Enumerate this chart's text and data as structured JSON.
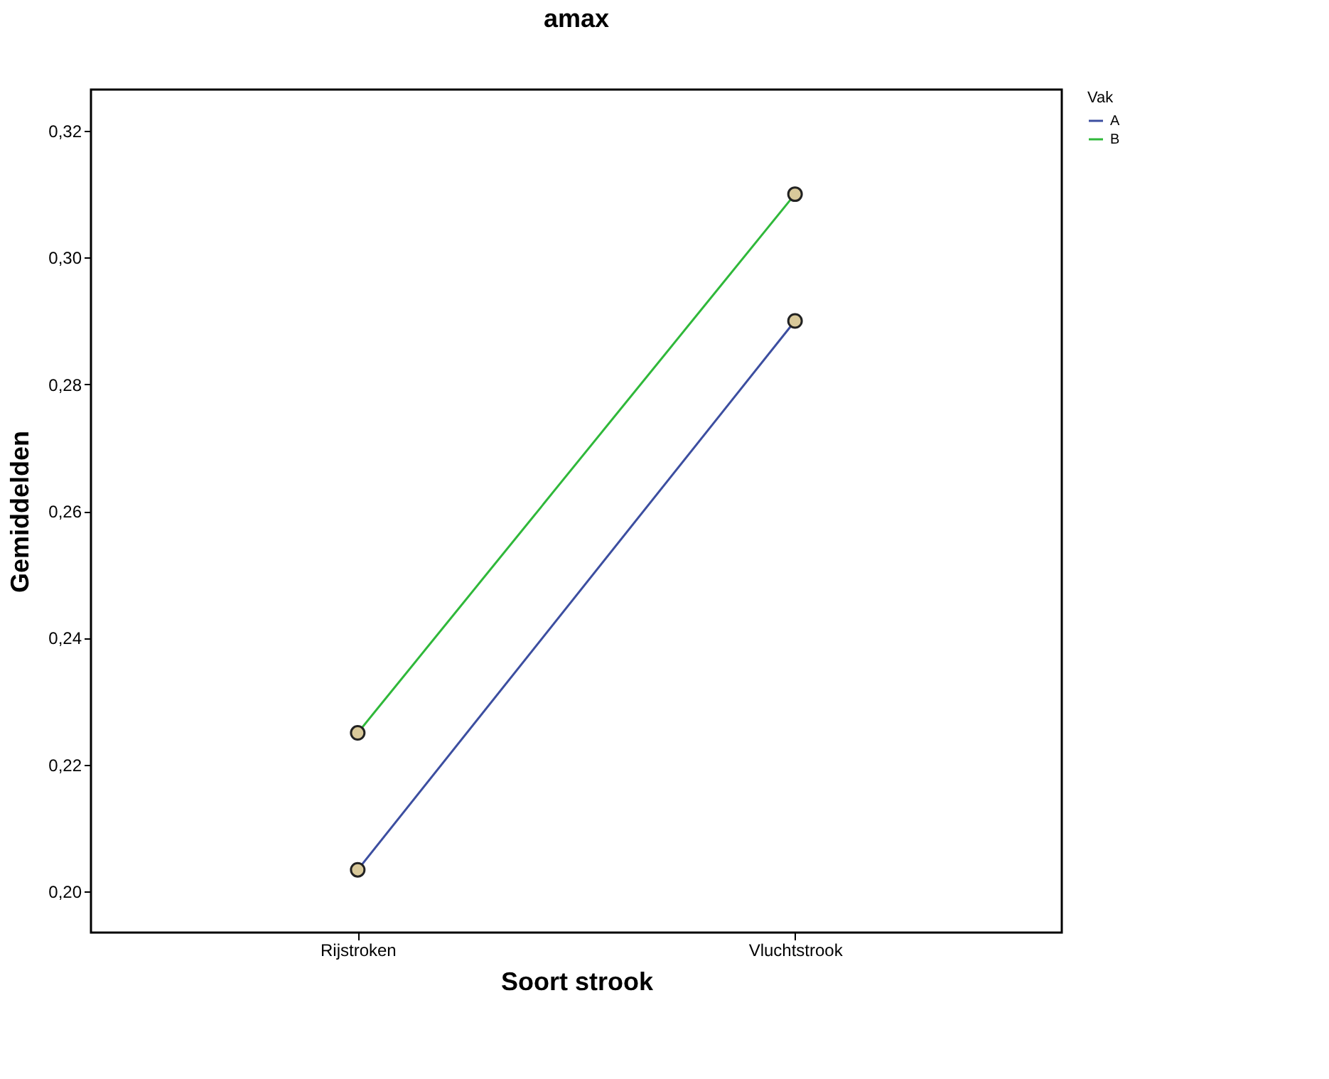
{
  "chart_data": {
    "type": "line",
    "title": "amax",
    "xlabel": "Soort strook",
    "ylabel": "Gemiddelden",
    "legend_title": "Vak",
    "categories": [
      "Rijstroken",
      "Vluchtstrook"
    ],
    "series": [
      {
        "name": "A",
        "color": "#3c4ea0",
        "values": [
          0.2034,
          0.29
        ]
      },
      {
        "name": "B",
        "color": "#2fb83a",
        "values": [
          0.225,
          0.31
        ]
      }
    ],
    "ylim": [
      0.1935,
      0.3265
    ],
    "yticks": [
      {
        "value": 0.2,
        "label": "0,20"
      },
      {
        "value": 0.22,
        "label": "0,22"
      },
      {
        "value": 0.24,
        "label": "0,24"
      },
      {
        "value": 0.26,
        "label": "0,26"
      },
      {
        "value": 0.28,
        "label": "0,28"
      },
      {
        "value": 0.3,
        "label": "0,30"
      },
      {
        "value": 0.32,
        "label": "0,32"
      }
    ],
    "grid": false,
    "legend": "top right",
    "marker": "circle",
    "line_style": "solid"
  }
}
